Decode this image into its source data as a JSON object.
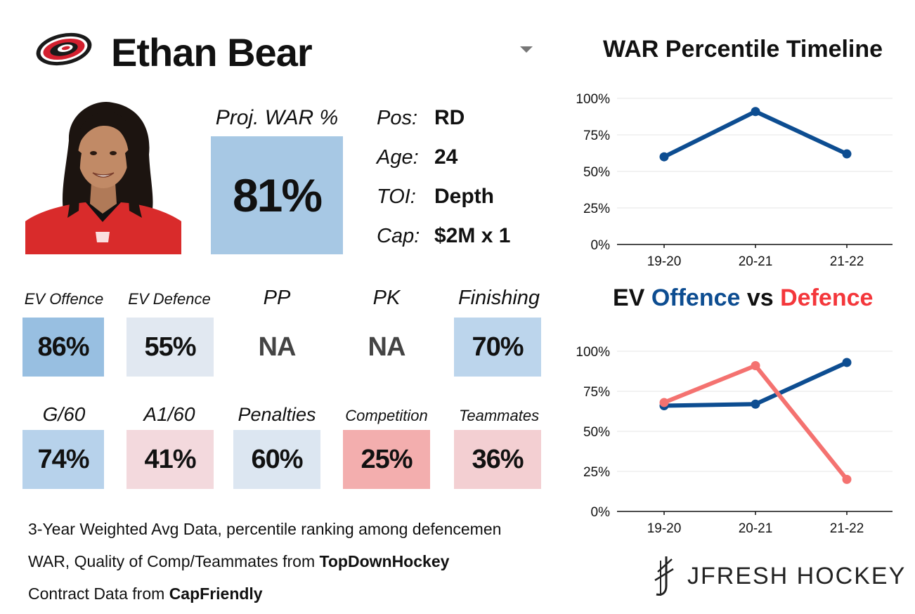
{
  "player": {
    "name": "Ethan Bear",
    "team_logo": "carolina-hurricanes-logo",
    "photo": "player-headshot"
  },
  "projection": {
    "label": "Proj. WAR %",
    "value": "81%",
    "color": "#a7c8e4"
  },
  "info": [
    {
      "label": "Pos:",
      "value": "RD"
    },
    {
      "label": "Age:",
      "value": "24"
    },
    {
      "label": "TOI:",
      "value": "Depth"
    },
    {
      "label": "Cap:",
      "value": "$2M x 1"
    }
  ],
  "stats_row1": [
    {
      "label": "EV Offence",
      "value": "86%",
      "color": "#98bfe1"
    },
    {
      "label": "EV Defence",
      "value": "55%",
      "color": "#e1e8f1"
    },
    {
      "label": "PP",
      "value": "NA",
      "color": "#ffffff"
    },
    {
      "label": "PK",
      "value": "NA",
      "color": "#ffffff"
    },
    {
      "label": "Finishing",
      "value": "70%",
      "color": "#bcd5ec"
    }
  ],
  "stats_row2": [
    {
      "label": "G/60",
      "value": "74%",
      "color": "#b7d2eb"
    },
    {
      "label": "A1/60",
      "value": "41%",
      "color": "#f3d9dd"
    },
    {
      "label": "Penalties",
      "value": "60%",
      "color": "#dce6f1"
    },
    {
      "label": "Competition",
      "value": "25%",
      "color": "#f3aeae"
    },
    {
      "label": "Teammates",
      "value": "36%",
      "color": "#f3cfd2"
    }
  ],
  "chart1": {
    "title": "WAR Percentile Timeline"
  },
  "chart2": {
    "title_part1": "EV ",
    "title_part2": "Offence",
    "title_part3": " vs ",
    "title_part4": "Defence"
  },
  "footnotes": {
    "line1": "3-Year Weighted Avg Data, percentile ranking among defencemen",
    "line2_prefix": "WAR, Quality of Comp/Teammates from ",
    "line2_bold": "TopDownHockey",
    "line3_prefix": "Contract Data from ",
    "line3_bold": "CapFriendly"
  },
  "brand": {
    "text": "JFRESH HOCKEY"
  },
  "chart_data": [
    {
      "type": "line",
      "title": "WAR Percentile Timeline",
      "categories": [
        "19-20",
        "20-21",
        "21-22"
      ],
      "series": [
        {
          "name": "WAR Percentile",
          "color": "#0d4d91",
          "values": [
            60,
            91,
            62
          ]
        }
      ],
      "y_ticks": [
        "0%",
        "25%",
        "50%",
        "75%",
        "100%"
      ],
      "ylim": [
        0,
        100
      ],
      "grid": true,
      "xlabel": "",
      "ylabel": ""
    },
    {
      "type": "line",
      "title": "EV Offence vs Defence",
      "categories": [
        "19-20",
        "20-21",
        "21-22"
      ],
      "series": [
        {
          "name": "Offence",
          "color": "#0d4d91",
          "values": [
            66,
            67,
            93
          ]
        },
        {
          "name": "Defence",
          "color": "#f47270",
          "values": [
            68,
            91,
            20
          ]
        }
      ],
      "y_ticks": [
        "0%",
        "25%",
        "50%",
        "75%",
        "100%"
      ],
      "ylim": [
        0,
        100
      ],
      "grid": true,
      "xlabel": "",
      "ylabel": ""
    }
  ]
}
